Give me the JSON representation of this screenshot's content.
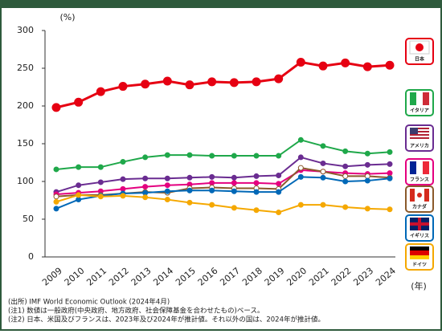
{
  "chart_data": {
    "type": "line",
    "y_label": "(%)",
    "x_label": "(年)",
    "categories": [
      "2009",
      "2010",
      "2011",
      "2012",
      "2013",
      "2014",
      "2015",
      "2016",
      "2017",
      "2018",
      "2019",
      "2020",
      "2021",
      "2022",
      "2023",
      "2024"
    ],
    "ylim": [
      0,
      300
    ],
    "yticks": [
      0,
      50,
      100,
      150,
      200,
      250,
      300
    ],
    "grid": false,
    "series": [
      {
        "name": "日本",
        "color": "#e60012",
        "values": [
          198,
          205,
          219,
          226,
          229,
          233,
          228,
          232,
          231,
          232,
          236,
          258,
          253,
          257,
          252,
          254
        ]
      },
      {
        "name": "イタリア",
        "color": "#1fa84a",
        "values": [
          116,
          119,
          119,
          126,
          132,
          135,
          135,
          134,
          134,
          134,
          134,
          155,
          147,
          140,
          137,
          139
        ]
      },
      {
        "name": "アメリカ",
        "color": "#6a2c91",
        "values": [
          86,
          95,
          99,
          103,
          104,
          104,
          105,
          106,
          105,
          107,
          108,
          132,
          124,
          120,
          122,
          123
        ]
      },
      {
        "name": "フランス",
        "color": "#e4007f",
        "values": [
          83,
          85,
          87,
          90,
          93,
          95,
          96,
          98,
          98,
          98,
          97,
          115,
          113,
          111,
          110,
          111
        ]
      },
      {
        "name": "カナダ",
        "color": "#8b5a2b",
        "values": [
          80,
          82,
          82,
          84,
          86,
          85,
          91,
          92,
          91,
          91,
          90,
          118,
          113,
          107,
          107,
          105
        ]
      },
      {
        "name": "イギリス",
        "color": "#0068b7",
        "values": [
          64,
          76,
          81,
          84,
          85,
          87,
          88,
          88,
          87,
          86,
          86,
          106,
          105,
          100,
          101,
          104
        ]
      },
      {
        "name": "ドイツ",
        "color": "#f5a800",
        "values": [
          73,
          82,
          80,
          81,
          79,
          76,
          72,
          69,
          65,
          62,
          59,
          69,
          69,
          66,
          64,
          63
        ]
      }
    ],
    "notes": [
      "(出所) IMF World Economic Outlook (2024年4月)",
      "(注1) 数値は一般政府(中央政府、地方政府、社会保障基金を合わせたもの)ベース。",
      "(注2) 日本、米国及びフランスは、2023年及び2024年が推計値。それ以外の国は、2024年が推計値。"
    ]
  }
}
